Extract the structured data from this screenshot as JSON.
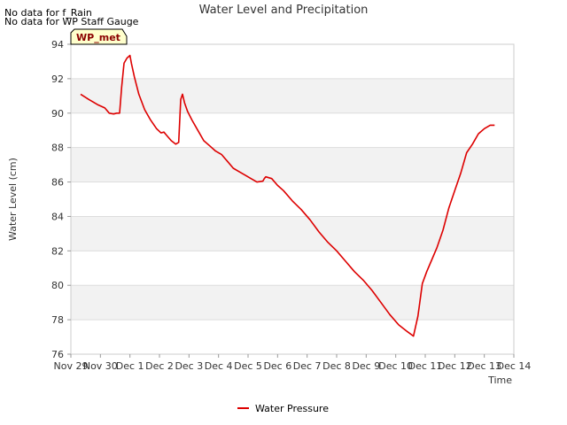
{
  "notes": [
    "No data for f_Rain",
    "No data for WP Staff Gauge"
  ],
  "badge": "WP_met",
  "colors": {
    "series": "#dd0000",
    "band": "#f2f2f2",
    "grid": "#dddddd",
    "badge_fill": "#ffffcc"
  },
  "chart_data": {
    "type": "line",
    "title": "Water Level and Precipitation",
    "xlabel": "Time",
    "ylabel": "Water Level (cm)",
    "ylim": [
      76,
      94
    ],
    "yticks": [
      76,
      78,
      80,
      82,
      84,
      86,
      88,
      90,
      92,
      94
    ],
    "xlim": [
      0,
      15
    ],
    "xticks": [
      {
        "v": 0,
        "label": "Nov 29"
      },
      {
        "v": 1,
        "label": "Nov 30"
      },
      {
        "v": 2,
        "label": "Dec 1"
      },
      {
        "v": 3,
        "label": "Dec 2"
      },
      {
        "v": 4,
        "label": "Dec 3"
      },
      {
        "v": 5,
        "label": "Dec 4"
      },
      {
        "v": 6,
        "label": "Dec 5"
      },
      {
        "v": 7,
        "label": "Dec 6"
      },
      {
        "v": 8,
        "label": "Dec 7"
      },
      {
        "v": 9,
        "label": "Dec 8"
      },
      {
        "v": 10,
        "label": "Dec 9"
      },
      {
        "v": 11,
        "label": "Dec 10"
      },
      {
        "v": 12,
        "label": "Dec 11"
      },
      {
        "v": 13,
        "label": "Dec 12"
      },
      {
        "v": 14,
        "label": "Dec 13"
      },
      {
        "v": 15,
        "label": "Dec 14"
      }
    ],
    "legend": "bottom-center",
    "series": [
      {
        "name": "Water Pressure",
        "x": [
          0.33,
          0.6,
          0.9,
          1.15,
          1.3,
          1.45,
          1.55,
          1.65,
          1.72,
          1.8,
          1.9,
          2.0,
          2.05,
          2.15,
          2.3,
          2.5,
          2.7,
          2.9,
          3.05,
          3.15,
          3.25,
          3.4,
          3.55,
          3.65,
          3.72,
          3.78,
          3.85,
          3.95,
          4.1,
          4.3,
          4.5,
          4.7,
          4.9,
          5.1,
          5.3,
          5.5,
          5.7,
          5.9,
          6.1,
          6.3,
          6.5,
          6.55,
          6.6,
          6.8,
          7.0,
          7.2,
          7.5,
          7.8,
          8.1,
          8.4,
          8.7,
          9.0,
          9.3,
          9.6,
          9.9,
          10.2,
          10.5,
          10.8,
          11.1,
          11.4,
          11.6,
          11.75,
          11.8,
          11.9,
          12.05,
          12.2,
          12.4,
          12.6,
          12.8,
          13.0,
          13.2,
          13.4,
          13.6,
          13.8,
          14.0,
          14.2,
          14.35
        ],
        "values": [
          91.1,
          90.8,
          90.5,
          90.3,
          90.0,
          89.95,
          90.0,
          90.0,
          91.5,
          92.9,
          93.2,
          93.35,
          92.9,
          92.1,
          91.1,
          90.2,
          89.6,
          89.1,
          88.85,
          88.9,
          88.7,
          88.4,
          88.2,
          88.3,
          90.8,
          91.1,
          90.6,
          90.1,
          89.6,
          89.0,
          88.4,
          88.1,
          87.8,
          87.6,
          87.2,
          86.8,
          86.6,
          86.4,
          86.2,
          86.0,
          86.05,
          86.2,
          86.3,
          86.2,
          85.8,
          85.5,
          84.9,
          84.4,
          83.8,
          83.1,
          82.5,
          82.0,
          81.4,
          80.8,
          80.3,
          79.7,
          79.0,
          78.3,
          77.7,
          77.3,
          77.05,
          78.2,
          78.8,
          80.1,
          80.8,
          81.4,
          82.2,
          83.2,
          84.5,
          85.5,
          86.5,
          87.7,
          88.2,
          88.8,
          89.1,
          89.3,
          89.3
        ]
      }
    ]
  }
}
